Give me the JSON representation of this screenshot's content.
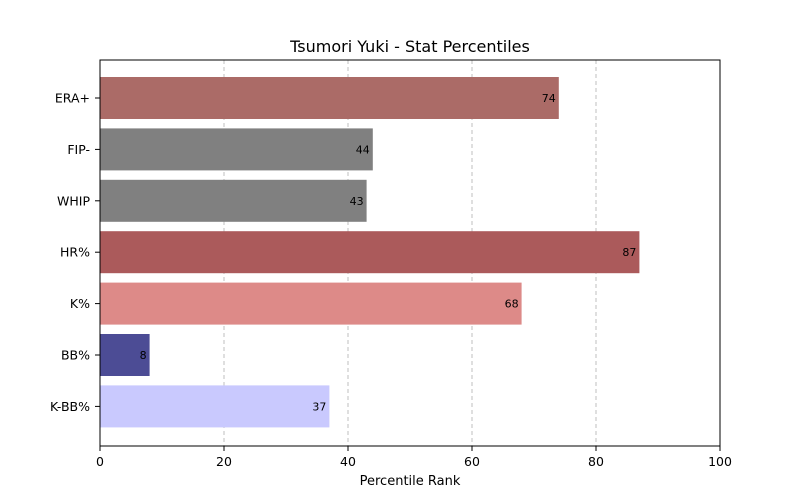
{
  "chart_data": {
    "type": "bar",
    "orientation": "horizontal",
    "title": "Tsumori Yuki - Stat Percentiles",
    "xlabel": "Percentile Rank",
    "ylabel": "",
    "xlim": [
      0,
      100
    ],
    "xticks": [
      0,
      20,
      40,
      60,
      80,
      100
    ],
    "grid": "x-dashed",
    "categories": [
      "ERA+",
      "FIP-",
      "WHIP",
      "HR%",
      "K%",
      "BB%",
      "K-BB%"
    ],
    "values": [
      74,
      44,
      43,
      87,
      68,
      8,
      37
    ],
    "colors": [
      "#ab6b67",
      "#808080",
      "#808080",
      "#ab5a5b",
      "#dd8a88",
      "#4c4c95",
      "#c9c9fe"
    ]
  }
}
